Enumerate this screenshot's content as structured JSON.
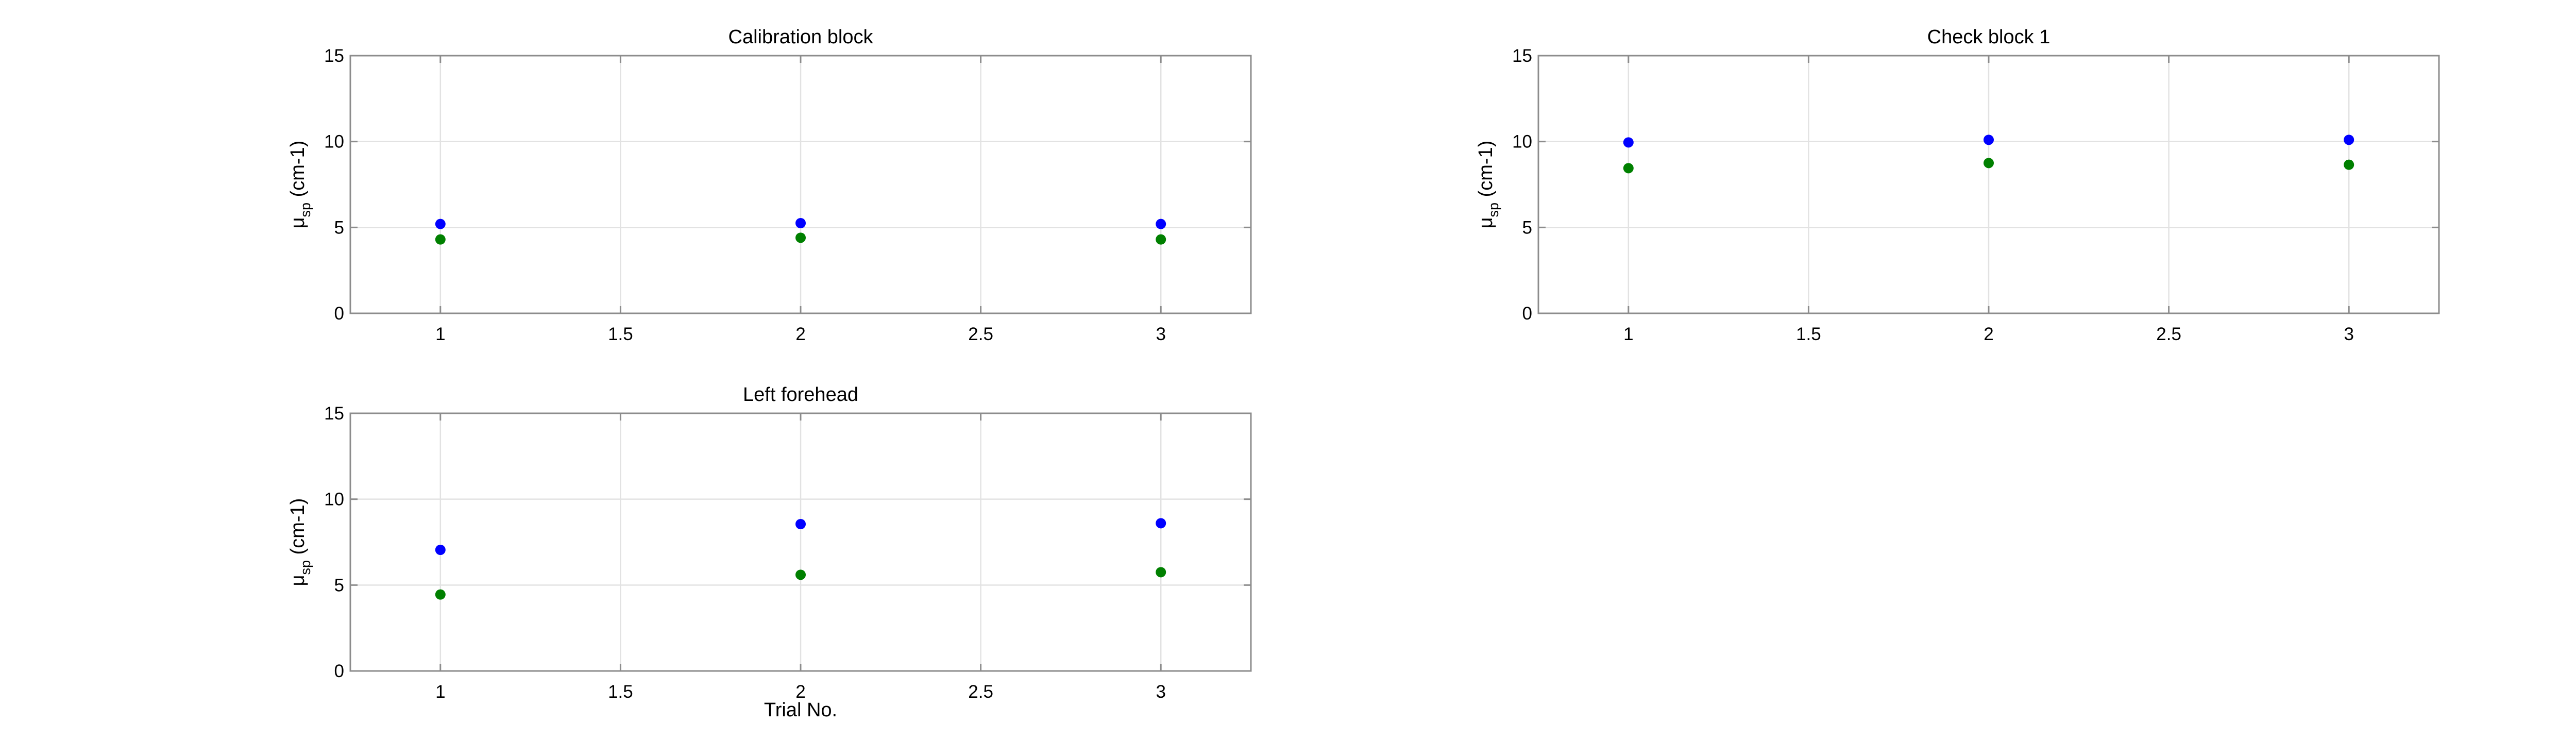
{
  "chart_data": [
    {
      "type": "scatter",
      "title": "Calibration block",
      "xlabel": "",
      "ylabel": {
        "symbol": "μ",
        "subscript": "sp",
        "unit": "(cm-1)"
      },
      "xlim": [
        0.75,
        3.25
      ],
      "ylim": [
        0,
        15
      ],
      "xticks": [
        "1",
        "1.5",
        "2",
        "2.5",
        "3"
      ],
      "yticks": [
        "0",
        "5",
        "10",
        "15"
      ],
      "grid": true,
      "series": [
        {
          "color": "#0000ff",
          "x": [
            1,
            2,
            3
          ],
          "y": [
            5.2,
            5.25,
            5.2
          ]
        },
        {
          "color": "#008000",
          "x": [
            1,
            2,
            3
          ],
          "y": [
            4.3,
            4.4,
            4.3
          ]
        }
      ]
    },
    {
      "type": "scatter",
      "title": "Check block 1",
      "xlabel": "",
      "ylabel": {
        "symbol": "μ",
        "subscript": "sp",
        "unit": "(cm-1)"
      },
      "xlim": [
        0.75,
        3.25
      ],
      "ylim": [
        0,
        15
      ],
      "xticks": [
        "1",
        "1.5",
        "2",
        "2.5",
        "3"
      ],
      "yticks": [
        "0",
        "5",
        "10",
        "15"
      ],
      "grid": true,
      "series": [
        {
          "color": "#0000ff",
          "x": [
            1,
            2,
            3
          ],
          "y": [
            9.95,
            10.1,
            10.1
          ]
        },
        {
          "color": "#008000",
          "x": [
            1,
            2,
            3
          ],
          "y": [
            8.45,
            8.75,
            8.65
          ]
        }
      ]
    },
    {
      "type": "scatter",
      "title": "Left forehead",
      "xlabel": "Trial No.",
      "ylabel": {
        "symbol": "μ",
        "subscript": "sp",
        "unit": "(cm-1)"
      },
      "xlim": [
        0.75,
        3.25
      ],
      "ylim": [
        0,
        15
      ],
      "xticks": [
        "1",
        "1.5",
        "2",
        "2.5",
        "3"
      ],
      "yticks": [
        "0",
        "5",
        "10",
        "15"
      ],
      "grid": true,
      "series": [
        {
          "color": "#0000ff",
          "x": [
            1,
            2,
            3
          ],
          "y": [
            7.05,
            8.55,
            8.6
          ]
        },
        {
          "color": "#008000",
          "x": [
            1,
            2,
            3
          ],
          "y": [
            4.45,
            5.6,
            5.75
          ]
        }
      ]
    }
  ]
}
